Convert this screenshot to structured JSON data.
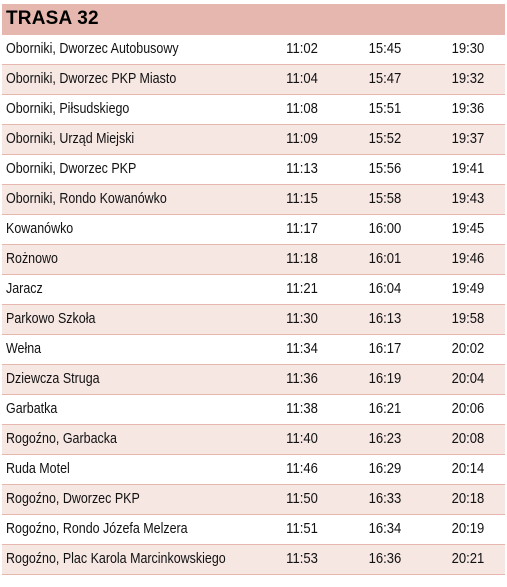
{
  "route": {
    "title": "TRASA 32"
  },
  "colors": {
    "header_bg": "#e6b7ae",
    "alt_row_bg": "#f6e7e3"
  },
  "stops": [
    {
      "name": "Oborniki, Dworzec Autobusowy",
      "times": [
        "11:02",
        "15:45",
        "19:30"
      ]
    },
    {
      "name": "Oborniki, Dworzec PKP Miasto",
      "times": [
        "11:04",
        "15:47",
        "19:32"
      ]
    },
    {
      "name": "Oborniki, Piłsudskiego",
      "times": [
        "11:08",
        "15:51",
        "19:36"
      ]
    },
    {
      "name": "Oborniki, Urząd Miejski",
      "times": [
        "11:09",
        "15:52",
        "19:37"
      ]
    },
    {
      "name": "Oborniki, Dworzec PKP",
      "times": [
        "11:13",
        "15:56",
        "19:41"
      ]
    },
    {
      "name": "Oborniki, Rondo Kowanówko",
      "times": [
        "11:15",
        "15:58",
        "19:43"
      ]
    },
    {
      "name": "Kowanówko",
      "times": [
        "11:17",
        "16:00",
        "19:45"
      ]
    },
    {
      "name": "Rożnowo",
      "times": [
        "11:18",
        "16:01",
        "19:46"
      ]
    },
    {
      "name": "Jaracz",
      "times": [
        "11:21",
        "16:04",
        "19:49"
      ]
    },
    {
      "name": "Parkowo Szkoła",
      "times": [
        "11:30",
        "16:13",
        "19:58"
      ]
    },
    {
      "name": "Wełna",
      "times": [
        "11:34",
        "16:17",
        "20:02"
      ]
    },
    {
      "name": "Dziewcza Struga",
      "times": [
        "11:36",
        "16:19",
        "20:04"
      ]
    },
    {
      "name": "Garbatka",
      "times": [
        "11:38",
        "16:21",
        "20:06"
      ]
    },
    {
      "name": "Rogoźno, Garbacka",
      "times": [
        "11:40",
        "16:23",
        "20:08"
      ]
    },
    {
      "name": "Ruda Motel",
      "times": [
        "11:46",
        "16:29",
        "20:14"
      ]
    },
    {
      "name": "Rogoźno, Dworzec PKP",
      "times": [
        "11:50",
        "16:33",
        "20:18"
      ]
    },
    {
      "name": "Rogoźno, Rondo Józefa Melzera",
      "times": [
        "11:51",
        "16:34",
        "20:19"
      ]
    },
    {
      "name": "Rogoźno, Plac Karola Marcinkowskiego",
      "times": [
        "11:53",
        "16:36",
        "20:21"
      ]
    }
  ]
}
